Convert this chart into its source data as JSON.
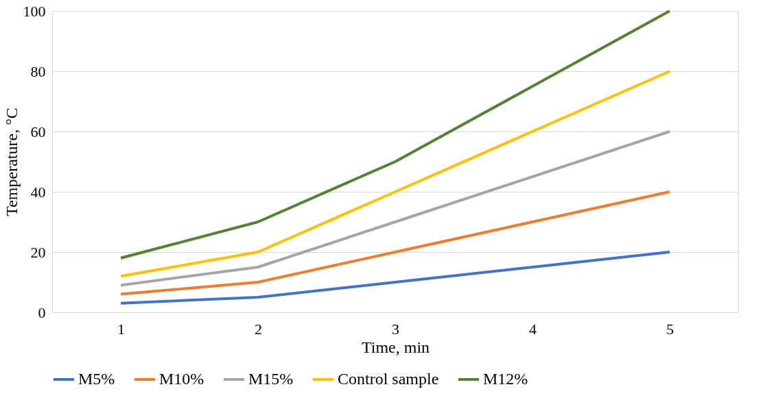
{
  "chart_data": {
    "type": "line",
    "xlabel": "Time, min",
    "ylabel": "Temperature, °C",
    "categories": [
      "1",
      "2",
      "3",
      "4",
      "5"
    ],
    "series": [
      {
        "name": "M5%",
        "color": "#4472c4",
        "values": [
          3,
          5,
          10,
          15,
          20
        ]
      },
      {
        "name": "M10%",
        "color": "#ed7d31",
        "values": [
          6,
          10,
          20,
          30,
          40
        ]
      },
      {
        "name": "M15%",
        "color": "#a5a5a5",
        "values": [
          9,
          15,
          30,
          45,
          60
        ]
      },
      {
        "name": "Control sample",
        "color": "#ffc000",
        "values": [
          12,
          20,
          40,
          60,
          80
        ]
      },
      {
        "name": "M12%",
        "color": "#548235",
        "values": [
          18,
          30,
          50,
          75,
          100
        ]
      }
    ],
    "ylim": [
      0,
      100
    ],
    "yticks": [
      0,
      20,
      40,
      60,
      80,
      100
    ],
    "grid": "y",
    "legend": "bottom",
    "marker": "none",
    "line_style": "solid"
  }
}
